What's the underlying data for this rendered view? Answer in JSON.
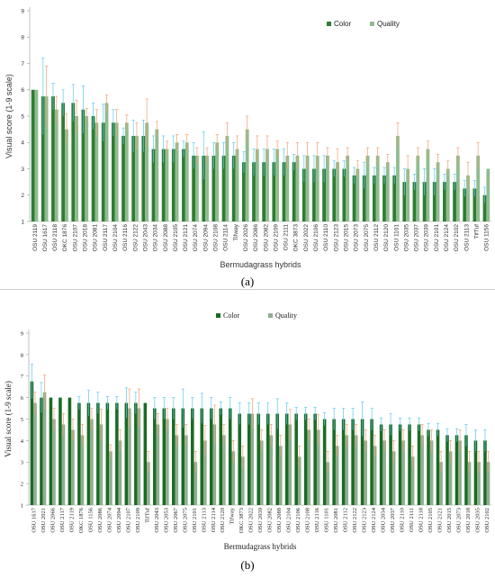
{
  "chart_data": [
    {
      "type": "bar",
      "panel_label": "(a)",
      "title": "",
      "xlabel": "Bermudagrass hybrids",
      "ylabel": "Visual score (1-9 scale)",
      "ylim": [
        1,
        9
      ],
      "yticks": [
        1,
        2,
        3,
        4,
        5,
        6,
        7,
        8,
        9
      ],
      "grid": false,
      "legend_position": "top-right",
      "colors": {
        "Color": "#2e7d32",
        "Quality": "#8fbc8f",
        "color_error": "#5bc8f0",
        "quality_error": "#f0a070"
      },
      "categories": [
        "OSU 2119",
        "OSU 1617",
        "OSU 2118",
        "OKC 1876",
        "OSU 2107",
        "OSU 2018",
        "OSU 2081",
        "OSU 2117",
        "OSU 2104",
        "OSU 2116",
        "OSU 2122",
        "OSU 2043",
        "OSU 2034",
        "OSU 2088",
        "OSU 2105",
        "OSU 2121",
        "OSU 2074",
        "OSU 2094",
        "OSU 2108",
        "OSU 2114",
        "Tifway",
        "OSU 2026",
        "OSU 2086",
        "OSU 2082",
        "OSU 2109",
        "OSU 2111",
        "OKC 3873",
        "OSU 2022",
        "OSU 2106",
        "OSU 2110",
        "OSU 2123",
        "OSU 2015",
        "OSU 2073",
        "OSU 2075",
        "OSU 2112",
        "OSU 2120",
        "OSU 1101",
        "OSU 2035",
        "OSU 2037",
        "OSU 2039",
        "OSU 2101",
        "OSU 2124",
        "OSU 2102",
        "OSU 2113",
        "TifTuf",
        "OSU 1156"
      ],
      "series": [
        {
          "name": "Color",
          "values": [
            6.0,
            5.75,
            5.75,
            5.5,
            5.5,
            5.25,
            5.0,
            4.75,
            4.75,
            4.25,
            4.25,
            4.25,
            3.75,
            3.75,
            3.75,
            3.75,
            3.5,
            3.5,
            3.5,
            3.5,
            3.5,
            3.25,
            3.25,
            3.25,
            3.25,
            3.25,
            3.25,
            3.0,
            3.0,
            3.0,
            3.0,
            3.0,
            2.75,
            2.75,
            2.75,
            2.75,
            2.75,
            2.5,
            2.5,
            2.5,
            2.5,
            2.5,
            2.5,
            2.25,
            2.25,
            2.0
          ],
          "errors": [
            0.0,
            1.45,
            0.5,
            0.5,
            0.7,
            0.9,
            0.5,
            0.7,
            0.5,
            0.3,
            0.6,
            0.6,
            0.5,
            0.5,
            0.5,
            0.3,
            0.5,
            0.9,
            0.5,
            0.5,
            0.5,
            0.4,
            0.5,
            0.5,
            0.5,
            0.5,
            0.3,
            0.5,
            0.5,
            0.5,
            0.3,
            0.3,
            0.3,
            0.5,
            0.3,
            0.3,
            0.3,
            0.5,
            0.3,
            0.5,
            0.5,
            0.3,
            0.3,
            0.3,
            0.3,
            0.3
          ]
        },
        {
          "name": "Quality",
          "values": [
            6.0,
            5.75,
            5.25,
            4.5,
            5.0,
            5.0,
            4.75,
            5.5,
            4.75,
            4.75,
            4.25,
            4.75,
            4.5,
            3.75,
            4.0,
            4.0,
            3.5,
            3.5,
            4.0,
            4.25,
            3.75,
            4.5,
            3.75,
            3.75,
            3.75,
            3.5,
            3.5,
            3.5,
            3.5,
            3.5,
            3.25,
            3.5,
            3.0,
            3.5,
            3.5,
            3.25,
            4.25,
            3.0,
            3.5,
            3.75,
            3.25,
            3.0,
            3.5,
            2.75,
            3.5,
            3.0
          ],
          "errors": [
            0.0,
            1.15,
            0.5,
            0.6,
            0.6,
            0.3,
            0.5,
            0.3,
            0.5,
            0.3,
            0.5,
            0.9,
            0.3,
            0.3,
            0.3,
            0.3,
            0.3,
            0.3,
            0.3,
            0.5,
            0.5,
            0.5,
            0.5,
            0.5,
            0.3,
            0.5,
            0.5,
            0.5,
            0.5,
            0.3,
            0.5,
            0.3,
            0.3,
            0.3,
            0.3,
            0.3,
            0.5,
            0.5,
            0.3,
            0.3,
            0.3,
            0.3,
            0.3,
            0.5,
            0.5,
            0.0
          ]
        }
      ]
    },
    {
      "type": "bar",
      "panel_label": "(b)",
      "title": "",
      "xlabel": "Bermudagrass hybrids",
      "ylabel": "Visual score (1-9 scale)",
      "ylim": [
        1,
        9
      ],
      "yticks": [
        1,
        2,
        3,
        4,
        5,
        6,
        7,
        8,
        9
      ],
      "grid": false,
      "legend_position": "top-right",
      "colors": {
        "Color": "#1a6b24",
        "Quality": "#8faf8f",
        "color_error": "#5bc8f0",
        "quality_error": "#f0a070"
      },
      "categories": [
        "OSU 1617",
        "OSU 2021",
        "OSU 2066",
        "OSU 2117",
        "OSU 2119",
        "OKC 1876",
        "OSU 1156",
        "OSU 2086",
        "OSU 2074",
        "OSU 2094",
        "OSU 2107",
        "OSU 2109",
        "TifTuf",
        "OSU 2043",
        "OSU 2053",
        "OSU 2067",
        "OSU 2075",
        "OSU 2101",
        "OSU 2113",
        "OSU 2114",
        "OSU 2120",
        "Tifway",
        "OKC 3873",
        "OSU 2022",
        "OSU 2039",
        "OSU 2082",
        "OSU 2088",
        "OSU 2104",
        "OSU 2106",
        "OSU 2108",
        "OSU 2116",
        "OSU 1101",
        "OSU 2081",
        "OSU 2112",
        "OSU 2122",
        "OSU 2123",
        "OSU 2124",
        "OSU 2034",
        "OSU 2037",
        "OSU 2110",
        "OSU 2111",
        "OSU 2118",
        "OSU 2105",
        "OSU 2121",
        "OSU 2015",
        "OSU 2073",
        "OSU 2018",
        "OSU 2035",
        "OSU 2102"
      ],
      "series": [
        {
          "name": "Color",
          "values": [
            6.75,
            6.0,
            6.0,
            6.0,
            6.0,
            5.75,
            5.75,
            5.75,
            5.75,
            5.75,
            5.75,
            5.75,
            5.75,
            5.5,
            5.5,
            5.5,
            5.5,
            5.5,
            5.5,
            5.5,
            5.5,
            5.5,
            5.25,
            5.25,
            5.25,
            5.25,
            5.25,
            5.25,
            5.25,
            5.25,
            5.25,
            5.0,
            5.0,
            5.0,
            5.0,
            5.0,
            5.0,
            4.75,
            4.75,
            4.75,
            4.75,
            4.75,
            4.5,
            4.5,
            4.25,
            4.25,
            4.25,
            4.0,
            4.0
          ],
          "errors": [
            0.8,
            0.7,
            0.0,
            0.0,
            0.0,
            0.3,
            0.6,
            0.5,
            0.3,
            0.3,
            0.7,
            0.5,
            0.0,
            0.5,
            0.5,
            0.5,
            0.9,
            0.5,
            0.7,
            0.5,
            0.3,
            0.5,
            0.5,
            0.5,
            0.5,
            0.5,
            0.7,
            0.5,
            0.3,
            0.3,
            0.3,
            0.3,
            0.5,
            0.5,
            0.5,
            0.8,
            0.5,
            0.3,
            0.5,
            0.3,
            0.3,
            0.3,
            0.3,
            0.3,
            0.3,
            0.3,
            0.5,
            0.5,
            0.5
          ]
        },
        {
          "name": "Quality",
          "values": [
            5.75,
            6.25,
            5.0,
            4.75,
            4.5,
            4.25,
            5.0,
            4.75,
            3.5,
            4.0,
            5.5,
            5.5,
            3.0,
            4.75,
            5.0,
            4.25,
            4.25,
            3.0,
            4.0,
            4.75,
            4.25,
            3.5,
            3.25,
            5.25,
            4.0,
            4.25,
            3.75,
            4.75,
            3.25,
            4.5,
            4.5,
            3.0,
            3.75,
            4.25,
            4.25,
            4.0,
            3.75,
            4.0,
            3.5,
            4.0,
            3.25,
            4.25,
            4.0,
            3.0,
            3.5,
            4.0,
            3.0,
            3.0,
            3.0
          ],
          "errors": [
            0.5,
            0.8,
            0.5,
            0.5,
            0.5,
            0.5,
            0.5,
            0.7,
            0.3,
            0.5,
            0.9,
            0.9,
            0.5,
            0.5,
            0.5,
            0.5,
            0.5,
            0.5,
            0.7,
            0.9,
            0.5,
            0.5,
            0.5,
            0.7,
            0.5,
            0.5,
            0.5,
            0.7,
            0.5,
            0.5,
            0.7,
            0.5,
            0.5,
            0.5,
            0.5,
            0.5,
            0.5,
            0.5,
            0.5,
            0.5,
            0.5,
            0.5,
            0.5,
            0.5,
            0.5,
            0.5,
            0.5,
            0.5,
            0.5
          ]
        }
      ]
    }
  ]
}
